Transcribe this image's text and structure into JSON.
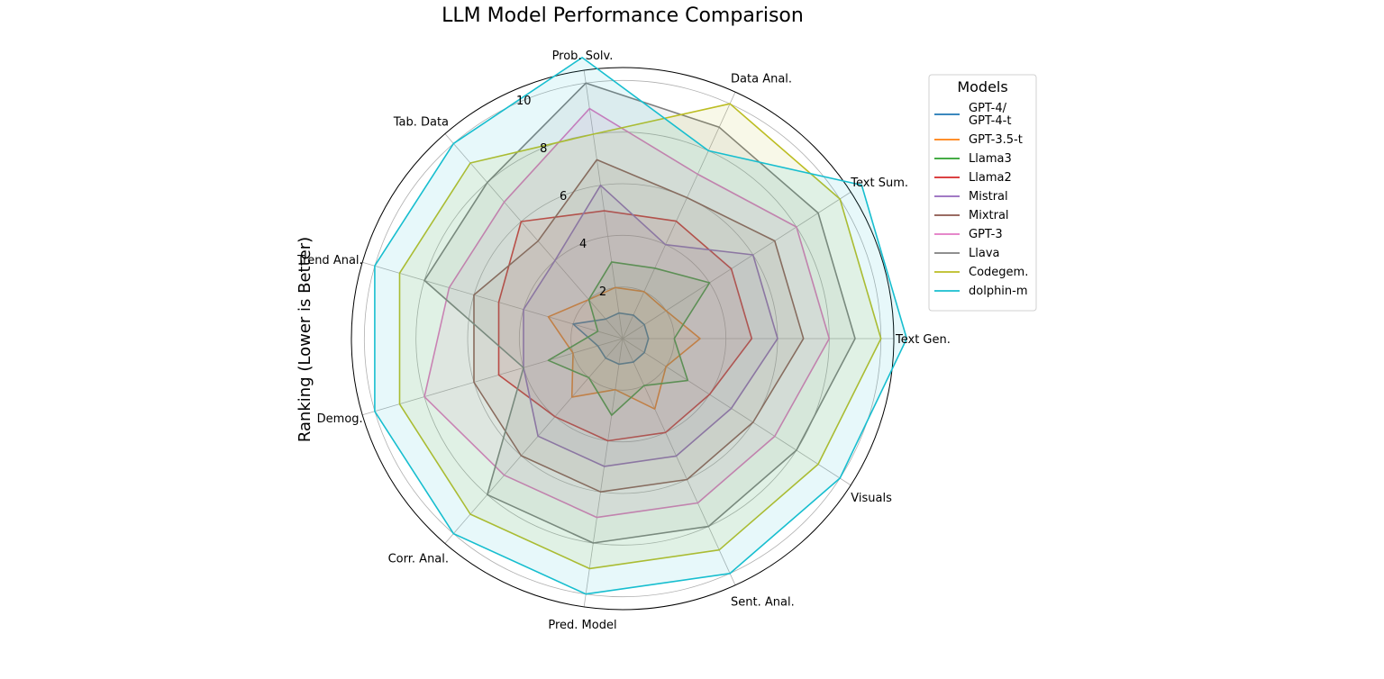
{
  "chart_data": {
    "type": "radar",
    "title": "LLM Model Performance Comparison",
    "ylabel": "Ranking (Lower is Better)",
    "categories": [
      "Text Gen.",
      "Text Sum.",
      "Data Anal.",
      "Prob. Solv.",
      "Tab. Data",
      "Trend Anal.",
      "Demog.",
      "Corr. Anal.",
      "Pred. Model",
      "Sent. Anal.",
      "Visuals"
    ],
    "rlim": [
      0,
      10.5
    ],
    "rticks": [
      2,
      4,
      6,
      8,
      10
    ],
    "grid": true,
    "legend": {
      "title": "Models",
      "placement": "right"
    },
    "series": [
      {
        "name": "GPT-4/\nGPT-4-t",
        "color": "#1f77b4",
        "values": [
          1,
          1,
          1,
          1,
          1,
          2,
          1,
          1,
          1,
          1,
          1
        ]
      },
      {
        "name": "GPT-3.5-t",
        "color": "#ff7f0e",
        "values": [
          3,
          2,
          2,
          2,
          2,
          3,
          2,
          3,
          2,
          3,
          2
        ]
      },
      {
        "name": "Llama3",
        "color": "#2ca02c",
        "values": [
          2,
          4,
          3,
          3,
          2,
          1,
          3,
          2,
          3,
          2,
          3
        ]
      },
      {
        "name": "Llama2",
        "color": "#d62728",
        "values": [
          5,
          5,
          5,
          5,
          6,
          5,
          5,
          4,
          4,
          4,
          4
        ]
      },
      {
        "name": "Mistral",
        "color": "#9467bd",
        "values": [
          6,
          6,
          4,
          6,
          4,
          4,
          4,
          5,
          5,
          5,
          5
        ]
      },
      {
        "name": "Mixtral",
        "color": "#8c564b",
        "values": [
          7,
          7,
          6,
          7,
          5,
          6,
          6,
          6,
          6,
          6,
          6
        ]
      },
      {
        "name": "GPT-3",
        "color": "#e377c2",
        "values": [
          8,
          8,
          7,
          9,
          7,
          7,
          8,
          7,
          7,
          7,
          7
        ]
      },
      {
        "name": "Llava",
        "color": "#7f7f7f",
        "values": [
          9,
          9,
          9,
          10,
          8,
          8,
          4,
          8,
          8,
          8,
          8
        ]
      },
      {
        "name": "Codegem.",
        "color": "#bcbd22",
        "values": [
          10,
          10,
          10,
          8,
          9,
          9,
          9,
          9,
          9,
          9,
          9
        ]
      },
      {
        "name": "dolphin-m",
        "color": "#17becf",
        "values": [
          11,
          11,
          8,
          11,
          10,
          10,
          10,
          10,
          10,
          10,
          10
        ]
      }
    ]
  }
}
